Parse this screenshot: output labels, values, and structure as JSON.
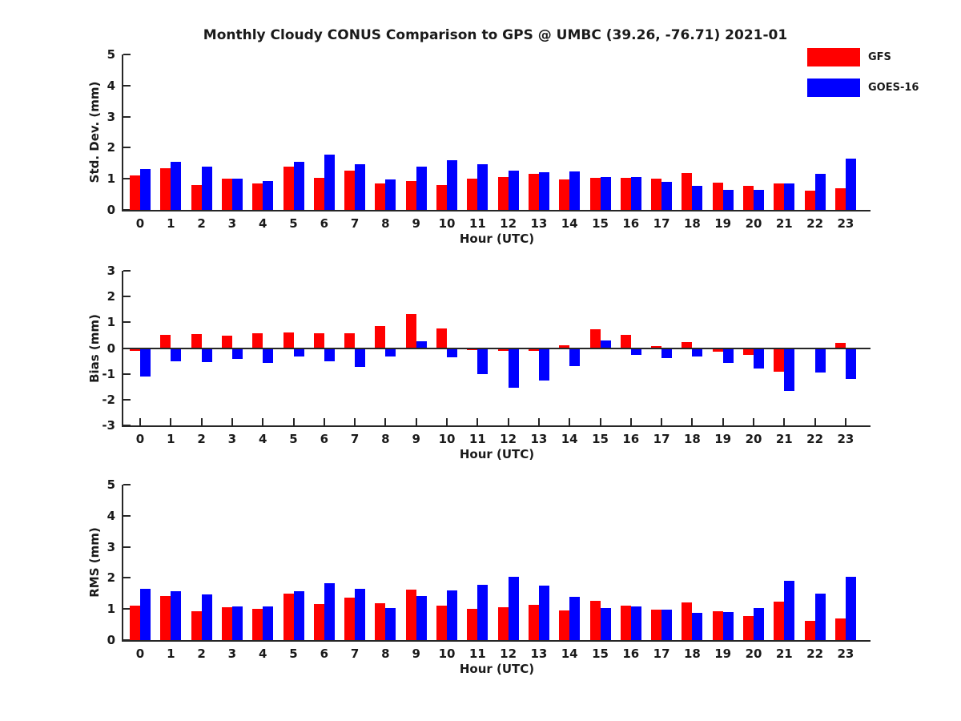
{
  "title": "Monthly Cloudy CONUS Comparison to GPS @ UMBC (39.26, -76.71) 2021-01",
  "legend": {
    "position": "top-right",
    "entries": [
      {
        "label": "GFS",
        "color": "#ff0000"
      },
      {
        "label": "GOES-16",
        "color": "#0000ff"
      }
    ]
  },
  "chart_data": [
    {
      "type": "bar",
      "name": "std-dev",
      "ylabel": "Std. Dev. (mm)",
      "xlabel": "Hour (UTC)",
      "ylim": [
        0,
        5
      ],
      "yticks": [
        0,
        1,
        2,
        3,
        4,
        5
      ],
      "grid": false,
      "categories": [
        "0",
        "1",
        "2",
        "3",
        "4",
        "5",
        "6",
        "7",
        "8",
        "9",
        "10",
        "11",
        "12",
        "13",
        "14",
        "15",
        "16",
        "17",
        "18",
        "19",
        "20",
        "21",
        "22",
        "23"
      ],
      "series": [
        {
          "name": "GFS",
          "color": "#ff0000",
          "values": [
            1.12,
            1.33,
            0.8,
            1.0,
            0.84,
            1.39,
            1.02,
            1.26,
            0.85,
            0.93,
            0.81,
            1.0,
            1.05,
            1.15,
            0.98,
            1.04,
            1.03,
            1.0,
            1.19,
            0.88,
            0.77,
            0.86,
            0.61,
            0.69
          ]
        },
        {
          "name": "GOES-16",
          "color": "#0000ff",
          "values": [
            1.31,
            1.55,
            1.38,
            1.0,
            0.93,
            1.54,
            1.78,
            1.46,
            0.99,
            1.39,
            1.6,
            1.46,
            1.26,
            1.22,
            1.23,
            1.05,
            1.06,
            0.9,
            0.77,
            0.65,
            0.64,
            0.84,
            1.16,
            1.65
          ]
        }
      ]
    },
    {
      "type": "bar",
      "name": "bias",
      "ylabel": "Bias (mm)",
      "xlabel": "Hour (UTC)",
      "ylim": [
        -3,
        3
      ],
      "yticks": [
        -3,
        -2,
        -1,
        0,
        1,
        2,
        3
      ],
      "grid": false,
      "categories": [
        "0",
        "1",
        "2",
        "3",
        "4",
        "5",
        "6",
        "7",
        "8",
        "9",
        "10",
        "11",
        "12",
        "13",
        "14",
        "15",
        "16",
        "17",
        "18",
        "19",
        "20",
        "21",
        "22",
        "23"
      ],
      "series": [
        {
          "name": "GFS",
          "color": "#ff0000",
          "values": [
            -0.12,
            0.5,
            0.53,
            0.48,
            0.56,
            0.61,
            0.58,
            0.56,
            0.84,
            1.33,
            0.77,
            -0.08,
            -0.12,
            -0.1,
            0.11,
            0.72,
            0.5,
            0.08,
            0.22,
            -0.15,
            -0.25,
            -0.93,
            0.0,
            0.19
          ]
        },
        {
          "name": "GOES-16",
          "color": "#0000ff",
          "values": [
            -1.1,
            -0.5,
            -0.55,
            -0.42,
            -0.57,
            -0.34,
            -0.51,
            -0.74,
            -0.33,
            0.26,
            -0.36,
            -1.01,
            -1.55,
            -1.26,
            -0.69,
            0.29,
            -0.25,
            -0.4,
            -0.32,
            -0.59,
            -0.79,
            -1.67,
            -0.96,
            -1.19
          ]
        }
      ]
    },
    {
      "type": "bar",
      "name": "rms",
      "ylabel": "RMS (mm)",
      "xlabel": "Hour (UTC)",
      "ylim": [
        0,
        5
      ],
      "yticks": [
        0,
        1,
        2,
        3,
        4,
        5
      ],
      "grid": false,
      "categories": [
        "0",
        "1",
        "2",
        "3",
        "4",
        "5",
        "6",
        "7",
        "8",
        "9",
        "10",
        "11",
        "12",
        "13",
        "14",
        "15",
        "16",
        "17",
        "18",
        "19",
        "20",
        "21",
        "22",
        "23"
      ],
      "series": [
        {
          "name": "GFS",
          "color": "#ff0000",
          "values": [
            1.1,
            1.41,
            0.94,
            1.06,
            1.01,
            1.5,
            1.17,
            1.37,
            1.18,
            1.63,
            1.1,
            1.0,
            1.05,
            1.14,
            0.96,
            1.26,
            1.11,
            0.99,
            1.2,
            0.92,
            0.78,
            1.25,
            0.62,
            0.7
          ]
        },
        {
          "name": "GOES-16",
          "color": "#0000ff",
          "values": [
            1.66,
            1.58,
            1.48,
            1.08,
            1.07,
            1.57,
            1.82,
            1.64,
            1.03,
            1.42,
            1.61,
            1.77,
            2.04,
            1.75,
            1.4,
            1.04,
            1.08,
            0.99,
            0.87,
            0.9,
            1.03,
            1.9,
            1.5,
            2.03
          ]
        }
      ]
    }
  ]
}
